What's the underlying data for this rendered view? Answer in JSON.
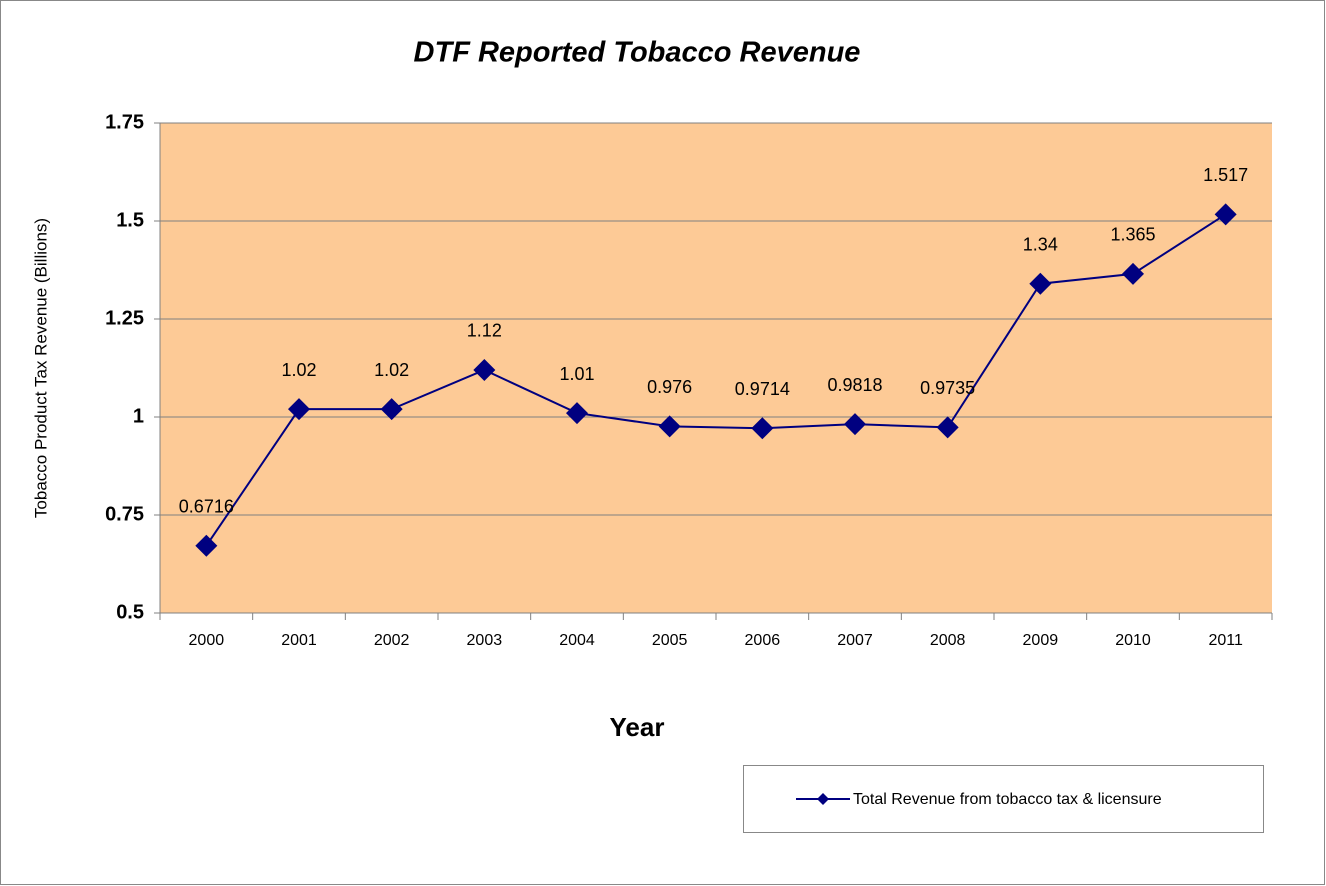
{
  "chart_data": {
    "type": "line",
    "title": "DTF Reported Tobacco Revenue",
    "x_label": "Year",
    "y_label": "Tobacco Product Tax Revenue (Billions)",
    "categories": [
      "2000",
      "2001",
      "2002",
      "2003",
      "2004",
      "2005",
      "2006",
      "2007",
      "2008",
      "2009",
      "2010",
      "2011"
    ],
    "series": [
      {
        "name": "Total Revenue from tobacco tax & licensure",
        "color": "#000080",
        "values": [
          0.6716,
          1.02,
          1.02,
          1.12,
          1.01,
          0.976,
          0.9714,
          0.9818,
          0.9735,
          1.34,
          1.365,
          1.517
        ]
      }
    ],
    "ylim": [
      0.5,
      1.75
    ],
    "yticks": [
      0.5,
      0.75,
      1,
      1.25,
      1.5,
      1.75
    ],
    "grid": true,
    "plot_background": "#fdca96"
  }
}
